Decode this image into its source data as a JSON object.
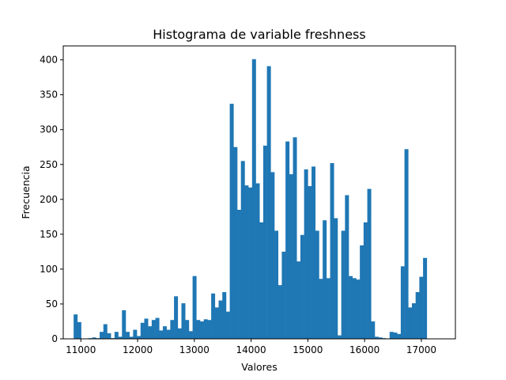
{
  "chart_data": {
    "type": "bar",
    "title": "Histograma de variable freshness",
    "xlabel": "Valores",
    "ylabel": "Frecuencia",
    "xlim": [
      10690,
      17600
    ],
    "ylim": [
      0,
      420
    ],
    "xticks": [
      11000,
      12000,
      13000,
      14000,
      15000,
      16000,
      17000
    ],
    "xtick_labels": [
      "11000",
      "12000",
      "13000",
      "14000",
      "15000",
      "16000",
      "17000"
    ],
    "yticks": [
      0,
      50,
      100,
      150,
      200,
      250,
      300,
      350,
      400
    ],
    "ytick_labels": [
      "0",
      "50",
      "100",
      "150",
      "200",
      "250",
      "300",
      "350",
      "400"
    ],
    "grid": false,
    "bar_color": "#1f77b4",
    "bin_start": 10873,
    "bin_width": 65.5,
    "values": [
      35,
      24,
      0,
      0,
      1,
      2,
      1,
      10,
      21,
      8,
      1,
      10,
      3,
      41,
      10,
      3,
      13,
      4,
      23,
      29,
      18,
      27,
      30,
      12,
      18,
      13,
      27,
      61,
      15,
      51,
      27,
      11,
      90,
      27,
      25,
      28,
      27,
      65,
      45,
      55,
      67,
      39,
      337,
      275,
      185,
      255,
      220,
      217,
      401,
      223,
      167,
      277,
      391,
      239,
      155,
      77,
      125,
      283,
      236,
      289,
      111,
      149,
      243,
      219,
      247,
      155,
      86,
      170,
      87,
      252,
      173,
      5,
      155,
      206,
      90,
      87,
      85,
      134,
      167,
      215,
      25,
      3,
      2,
      1,
      0,
      10,
      9,
      7,
      104,
      272,
      45,
      51,
      67,
      89,
      116
    ]
  }
}
